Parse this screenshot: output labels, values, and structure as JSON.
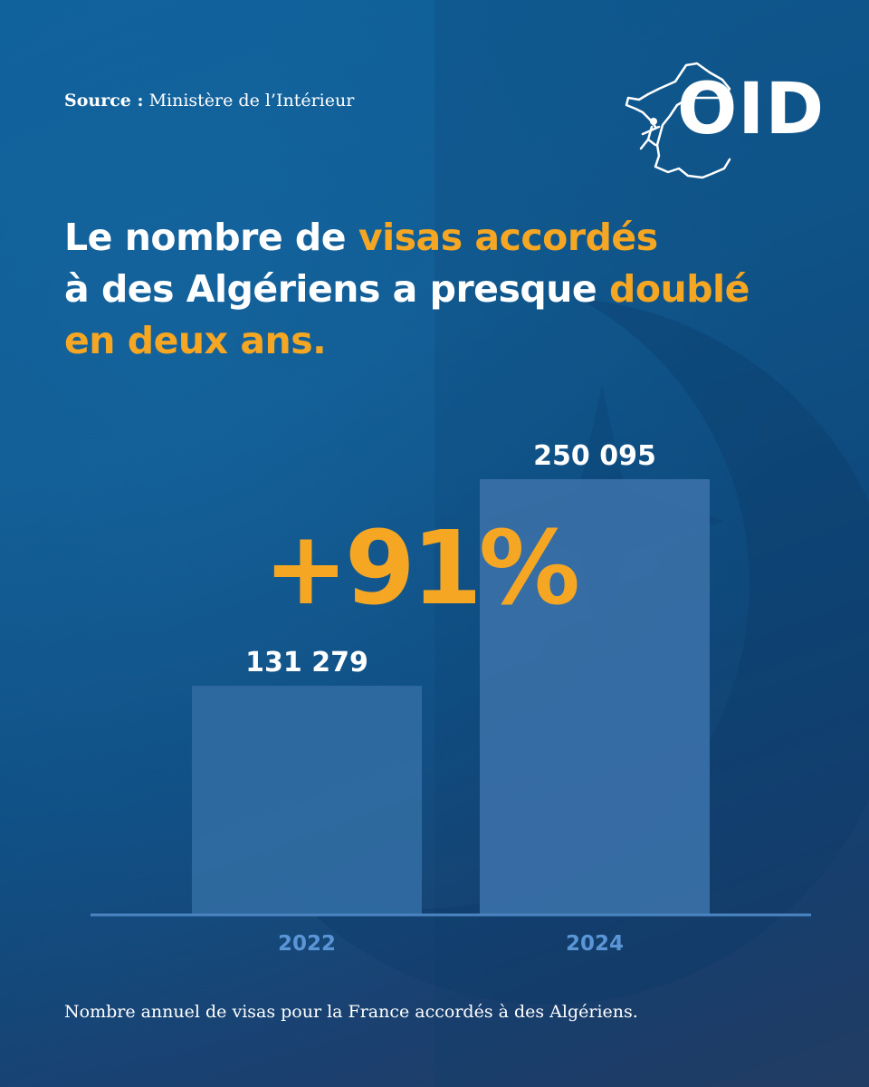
{
  "source": {
    "label": "Source :",
    "value": "Ministère de l’Intérieur"
  },
  "logo": {
    "text": "OID"
  },
  "headline": {
    "line1_white": "Le nombre de ",
    "line1_orange": "visas accordés",
    "line2_white": "à des Algériens a presque ",
    "line2_orange": "doublé",
    "line3_orange": "en deux ans."
  },
  "highlight": "+91%",
  "caption": "Nombre annuel de visas pour la France accordés à des Algériens.",
  "colors": {
    "accent": "#f5a623",
    "bar_2022": "#2f6aa0",
    "bar_2024": "#386fa5",
    "axis": "#4a84c0",
    "tick_label": "#5a95d6"
  },
  "chart_data": {
    "type": "bar",
    "categories": [
      "2022",
      "2024"
    ],
    "values": [
      131279,
      250095
    ],
    "value_labels": [
      "131 279",
      "250 095"
    ],
    "ylim": [
      0,
      300000
    ],
    "grid": false,
    "legend": "none"
  }
}
